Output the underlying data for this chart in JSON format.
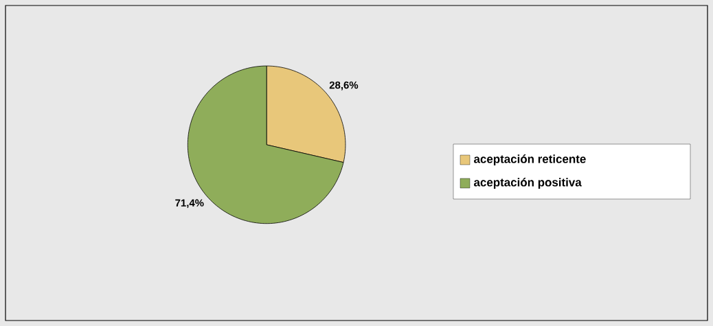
{
  "chart_data": {
    "type": "pie",
    "categories": [
      "aceptación reticente",
      "aceptación positiva"
    ],
    "values": [
      28.6,
      71.4
    ],
    "colors": [
      "#e8c77a",
      "#8fad5a"
    ],
    "value_labels": [
      "28,6%",
      "71,4%"
    ],
    "legend": "right"
  }
}
